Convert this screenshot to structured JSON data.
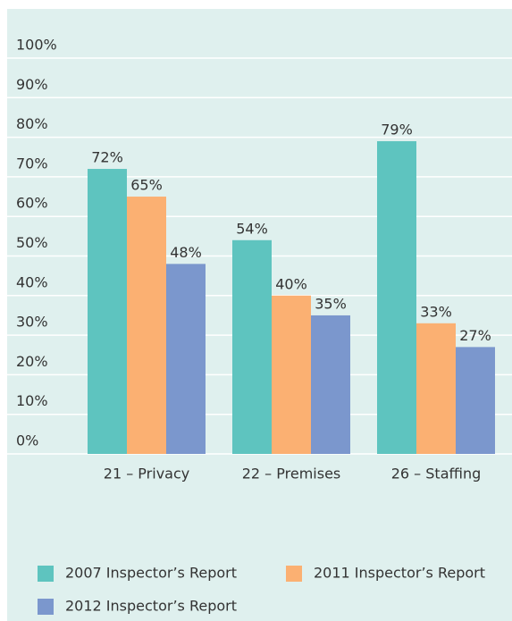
{
  "chart_data": {
    "type": "bar",
    "categories": [
      "21 – Privacy",
      "22 – Premises",
      "26 – Staffing"
    ],
    "series": [
      {
        "name": "2007 Inspector’s Report",
        "color": "#5ec4bf",
        "values": [
          72,
          54,
          79
        ],
        "value_labels": [
          "72%",
          "54%",
          "79%"
        ]
      },
      {
        "name": "2011 Inspector’s Report",
        "color": "#fbb072",
        "values": [
          65,
          40,
          33
        ],
        "value_labels": [
          "65%",
          "40%",
          "33%"
        ]
      },
      {
        "name": "2012 Inspector’s Report",
        "color": "#7b97cd",
        "values": [
          48,
          35,
          27
        ],
        "value_labels": [
          "48%",
          "35%",
          "27%"
        ]
      }
    ],
    "ylim": [
      0,
      100
    ],
    "yticks": [
      {
        "value": 0,
        "label": "0%"
      },
      {
        "value": 10,
        "label": "10%"
      },
      {
        "value": 20,
        "label": "20%"
      },
      {
        "value": 30,
        "label": "30%"
      },
      {
        "value": 40,
        "label": "40%"
      },
      {
        "value": 50,
        "label": "50%"
      },
      {
        "value": 60,
        "label": "60%"
      },
      {
        "value": 70,
        "label": "70%"
      },
      {
        "value": 80,
        "label": "80%"
      },
      {
        "value": 90,
        "label": "90%"
      },
      {
        "value": 100,
        "label": "100%"
      }
    ],
    "grid": true
  }
}
